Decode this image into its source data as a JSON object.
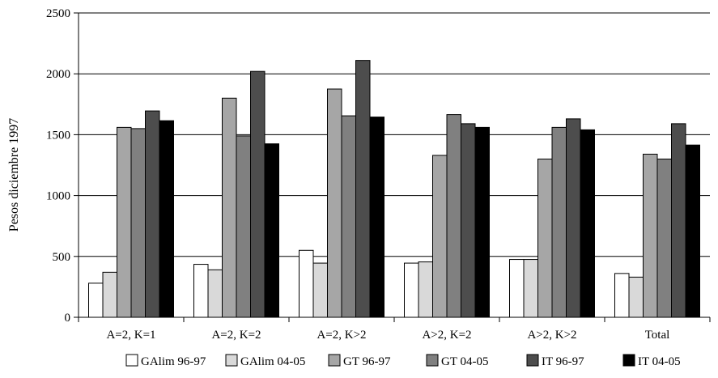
{
  "chart_data": {
    "type": "bar",
    "title": "",
    "xlabel": "",
    "ylabel": "Pesos diciembre 1997",
    "ylim": [
      0,
      2500
    ],
    "yticks": [
      0,
      500,
      1000,
      1500,
      2000,
      2500
    ],
    "grid": true,
    "legend_position": "bottom",
    "categories": [
      "A=2, K=1",
      "A=2, K=2",
      "A=2, K>2",
      "A>2, K=2",
      "A>2, K>2",
      "Total"
    ],
    "series": [
      {
        "name": "GAlim 96-97",
        "color": "#ffffff",
        "values": [
          280,
          435,
          550,
          445,
          475,
          360
        ]
      },
      {
        "name": "GAlim 04-05",
        "color": "#d9d9d9",
        "values": [
          370,
          390,
          445,
          455,
          475,
          330
        ]
      },
      {
        "name": "GT 96-97",
        "color": "#a6a6a6",
        "values": [
          1560,
          1800,
          1875,
          1330,
          1300,
          1340
        ]
      },
      {
        "name": "GT 04-05",
        "color": "#808080",
        "values": [
          1550,
          1490,
          1655,
          1665,
          1560,
          1300
        ]
      },
      {
        "name": "IT 96-97",
        "color": "#4d4d4d",
        "values": [
          1695,
          2020,
          2110,
          1590,
          1630,
          1590
        ]
      },
      {
        "name": "IT 04-05",
        "color": "#000000",
        "values": [
          1615,
          1425,
          1645,
          1560,
          1540,
          1415
        ]
      }
    ]
  }
}
